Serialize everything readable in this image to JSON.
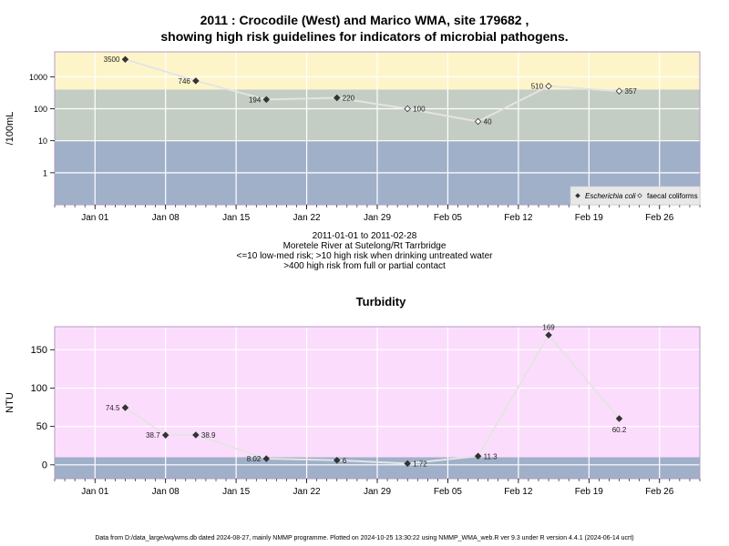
{
  "header": {
    "title_line1": "2011 : Crocodile (West) and Marico WMA, site 179682 ,",
    "title_line2": "showing high risk guidelines for indicators of microbial pathogens."
  },
  "captions": {
    "date_range": "2011-01-01 to 2011-02-28",
    "site": "Moretele River at Sutelong/Rt Tarrbridge",
    "risk_line1": "<=10 low-med risk; >10 high risk when drinking untreated water",
    "risk_line2": ">400 high risk from full or partial contact"
  },
  "footer": {
    "text": "Data from D:/data_large/wq/wms.db dated 2024-08-27, mainly NMMP programme. Plotted on 2024-10-25 13:30:22 using NMMP_WMA_web.R ver 9.3 under R version 4.4.1 (2024-06-14 ucrt)"
  },
  "colors": {
    "high_contact_band": "#fdf5c9",
    "mid_band": "#c4cdc3",
    "low_band": "#a0b0c9",
    "turbidity_band": "#fcdcfc",
    "turbidity_low_band": "#a0b0c9",
    "line": "#e4e4e4",
    "marker": "#333333"
  },
  "chart_data": [
    {
      "type": "line",
      "title": "",
      "ylabel": "/100mL",
      "yscale": "log",
      "ylim": [
        0.1,
        6000
      ],
      "y_ticks": [
        1,
        10,
        100,
        1000
      ],
      "y_tick_labels": [
        "1",
        "10",
        "100",
        "1000"
      ],
      "xlim": [
        "2010-12-28",
        "2011-03-02"
      ],
      "x_ticks": [
        "2011-01-01",
        "2011-01-08",
        "2011-01-15",
        "2011-01-22",
        "2011-01-29",
        "2011-02-05",
        "2011-02-12",
        "2011-02-19",
        "2011-02-26"
      ],
      "x_tick_labels": [
        "Jan 01",
        "Jan 08",
        "Jan 15",
        "Jan 22",
        "Jan 29",
        "Feb 05",
        "Feb 12",
        "Feb 19",
        "Feb 26"
      ],
      "bands": [
        {
          "from": 0.1,
          "to": 10,
          "color": "#a0b0c9"
        },
        {
          "from": 10,
          "to": 400,
          "color": "#c4cdc3"
        },
        {
          "from": 400,
          "to": 6000,
          "color": "#fdf5c9"
        }
      ],
      "series": [
        {
          "name": "Escherichia coli",
          "marker": "filled-diamond",
          "x": [
            "2011-01-04",
            "2011-01-11",
            "2011-01-18",
            "2011-01-25"
          ],
          "y": [
            3500,
            746,
            194,
            220
          ],
          "labels": [
            "3500",
            "746",
            "194",
            "220"
          ]
        },
        {
          "name": "faecal coliforms",
          "marker": "open-diamond",
          "x": [
            "2011-02-01",
            "2011-02-08",
            "2011-02-15",
            "2011-02-22"
          ],
          "y": [
            100,
            40,
            510,
            357
          ],
          "labels": [
            "100",
            "40",
            "510",
            "357"
          ]
        }
      ],
      "legend": "bottom-right",
      "grid": true
    },
    {
      "type": "line",
      "title": "Turbidity",
      "ylabel": "NTU",
      "ylim": [
        -18,
        180
      ],
      "y_ticks": [
        0,
        50,
        100,
        150
      ],
      "y_tick_labels": [
        "0",
        "50",
        "100",
        "150"
      ],
      "xlim": [
        "2010-12-28",
        "2011-03-02"
      ],
      "x_ticks": [
        "2011-01-01",
        "2011-01-08",
        "2011-01-15",
        "2011-01-22",
        "2011-01-29",
        "2011-02-05",
        "2011-02-12",
        "2011-02-19",
        "2011-02-26"
      ],
      "x_tick_labels": [
        "Jan 01",
        "Jan 08",
        "Jan 15",
        "Jan 22",
        "Jan 29",
        "Feb 05",
        "Feb 12",
        "Feb 19",
        "Feb 26"
      ],
      "bands": [
        {
          "from": -18,
          "to": 10,
          "color": "#a0b0c9"
        },
        {
          "from": 10,
          "to": 180,
          "color": "#fcdcfc"
        }
      ],
      "series": [
        {
          "name": "",
          "marker": "filled-diamond",
          "x": [
            "2011-01-04",
            "2011-01-08",
            "2011-01-11",
            "2011-01-18",
            "2011-01-25",
            "2011-02-01",
            "2011-02-08",
            "2011-02-15",
            "2011-02-22"
          ],
          "y": [
            74.5,
            38.7,
            38.9,
            8.02,
            6,
            1.72,
            11.3,
            169,
            60.2
          ],
          "labels": [
            "74.5",
            "38.7",
            "38.9",
            "8.02",
            "6",
            "1.72",
            "11.3",
            "169",
            "60.2"
          ]
        }
      ],
      "grid": true
    }
  ]
}
